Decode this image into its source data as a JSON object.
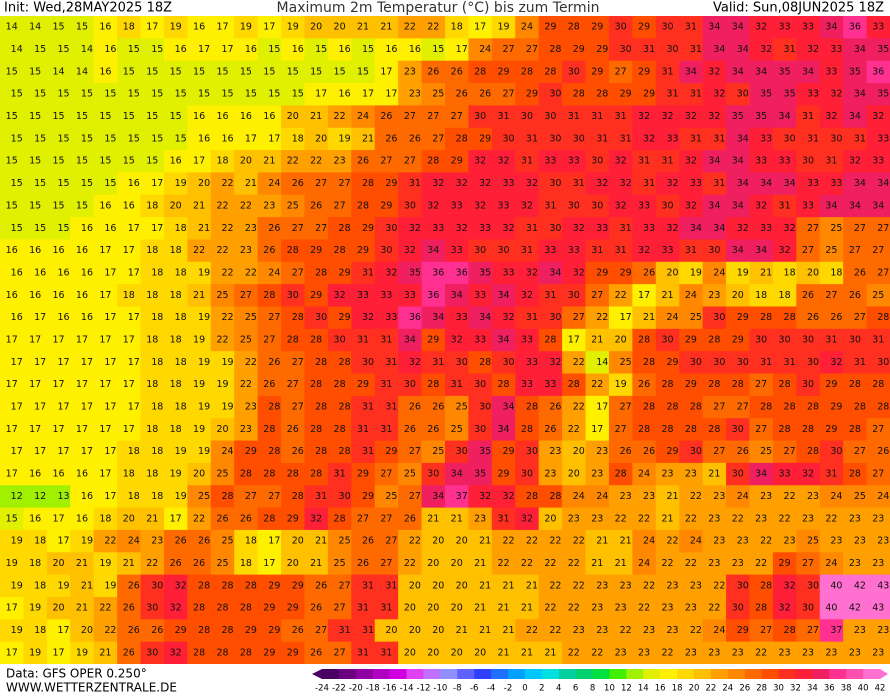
{
  "header": {
    "init": "Init: Wed,28MAY2025 18Z",
    "title": "Maximum 2m Temperatur (°C) bis zum Termin",
    "valid": "Valid: Sun,08JUN2025 18Z"
  },
  "footer": {
    "source": "Data: GFS OPER 0.250°",
    "website": "WWW.WETTERZENTRALE.DE"
  },
  "colorbar": {
    "labels": [
      -24,
      -22,
      -20,
      -18,
      -16,
      -14,
      -12,
      -10,
      -8,
      -6,
      -4,
      -2,
      0,
      2,
      4,
      6,
      8,
      10,
      12,
      14,
      16,
      18,
      20,
      22,
      24,
      26,
      28,
      30,
      32,
      34,
      36,
      38,
      40,
      42
    ],
    "colors": [
      "#4b0063",
      "#6a0080",
      "#8e00a0",
      "#b000c0",
      "#d000e0",
      "#e040f0",
      "#c070ff",
      "#9090ff",
      "#6060ff",
      "#3040ff",
      "#2070ff",
      "#00a0ff",
      "#00c8ff",
      "#00e0e0",
      "#00d0a0",
      "#00d070",
      "#00e040",
      "#40f000",
      "#a0f000",
      "#e0f000",
      "#fff000",
      "#ffd800",
      "#ffc000",
      "#ffa000",
      "#ff8800",
      "#ff6a00",
      "#ff4e00",
      "#ff3020",
      "#ff2038",
      "#f02060",
      "#ff3090",
      "#ff50b0",
      "#ff70d0"
    ]
  },
  "map": {
    "rows": [
      [
        14,
        14,
        15,
        15,
        16,
        18,
        17,
        19,
        16,
        17,
        19,
        17,
        19,
        20,
        20,
        21,
        21,
        22,
        22,
        18,
        17,
        19,
        24,
        29,
        28,
        29,
        30,
        29,
        30,
        31,
        34,
        34,
        32,
        33,
        33,
        34,
        36,
        33
      ],
      [
        14,
        15,
        15,
        14,
        16,
        15,
        15,
        16,
        17,
        17,
        16,
        15,
        16,
        15,
        16,
        15,
        16,
        16,
        15,
        17,
        24,
        27,
        27,
        28,
        29,
        29,
        30,
        31,
        30,
        31,
        34,
        34,
        32,
        31,
        32,
        33,
        34,
        35
      ],
      [
        15,
        15,
        14,
        14,
        16,
        15,
        15,
        15,
        15,
        15,
        15,
        15,
        15,
        15,
        15,
        15,
        17,
        23,
        26,
        26,
        28,
        29,
        28,
        28,
        30,
        29,
        27,
        29,
        31,
        34,
        32,
        34,
        34,
        35,
        34,
        33,
        35,
        36
      ],
      [
        15,
        15,
        15,
        15,
        15,
        15,
        15,
        15,
        15,
        15,
        15,
        15,
        15,
        17,
        16,
        17,
        17,
        23,
        25,
        26,
        26,
        27,
        29,
        30,
        28,
        28,
        29,
        29,
        31,
        31,
        32,
        30,
        35,
        35,
        33,
        32,
        34,
        35
      ],
      [
        15,
        15,
        15,
        15,
        15,
        15,
        15,
        15,
        16,
        16,
        16,
        16,
        20,
        21,
        22,
        24,
        26,
        27,
        27,
        27,
        30,
        31,
        30,
        30,
        31,
        31,
        31,
        32,
        32,
        32,
        32,
        35,
        35,
        34,
        31,
        32,
        34,
        32
      ],
      [
        15,
        15,
        15,
        15,
        15,
        15,
        15,
        15,
        16,
        16,
        17,
        17,
        18,
        20,
        19,
        21,
        26,
        26,
        27,
        28,
        29,
        30,
        31,
        30,
        30,
        31,
        31,
        32,
        33,
        31,
        31,
        34,
        33,
        30,
        31,
        30,
        31,
        33
      ],
      [
        15,
        15,
        15,
        15,
        15,
        15,
        15,
        16,
        17,
        18,
        20,
        21,
        22,
        22,
        23,
        26,
        27,
        27,
        28,
        29,
        32,
        32,
        31,
        33,
        33,
        30,
        32,
        31,
        31,
        32,
        34,
        34,
        33,
        33,
        30,
        31,
        32,
        33
      ],
      [
        15,
        15,
        15,
        15,
        15,
        16,
        17,
        19,
        20,
        22,
        21,
        24,
        26,
        27,
        27,
        28,
        29,
        31,
        32,
        32,
        32,
        33,
        32,
        30,
        31,
        32,
        32,
        31,
        32,
        33,
        31,
        34,
        34,
        34,
        33,
        33,
        34,
        34
      ],
      [
        15,
        15,
        15,
        15,
        16,
        16,
        18,
        20,
        21,
        22,
        22,
        23,
        25,
        26,
        27,
        28,
        29,
        30,
        32,
        33,
        32,
        33,
        32,
        31,
        30,
        30,
        32,
        33,
        30,
        32,
        34,
        34,
        32,
        31,
        33,
        34,
        34,
        34
      ],
      [
        15,
        15,
        15,
        16,
        16,
        17,
        17,
        18,
        21,
        22,
        23,
        26,
        27,
        27,
        28,
        29,
        30,
        32,
        33,
        32,
        33,
        32,
        31,
        30,
        32,
        33,
        31,
        33,
        32,
        34,
        34,
        32,
        33,
        32,
        27,
        25,
        27,
        27
      ],
      [
        16,
        16,
        16,
        16,
        17,
        17,
        18,
        18,
        22,
        22,
        23,
        26,
        28,
        29,
        28,
        29,
        30,
        32,
        34,
        33,
        30,
        30,
        31,
        33,
        33,
        31,
        31,
        32,
        33,
        31,
        30,
        34,
        34,
        32,
        27,
        25,
        27,
        27
      ],
      [
        16,
        16,
        16,
        16,
        17,
        17,
        18,
        18,
        19,
        22,
        22,
        24,
        27,
        28,
        29,
        31,
        32,
        35,
        36,
        36,
        35,
        33,
        32,
        34,
        32,
        29,
        29,
        26,
        20,
        19,
        24,
        19,
        21,
        18,
        20,
        18,
        26,
        27
      ],
      [
        16,
        16,
        16,
        16,
        17,
        18,
        18,
        18,
        21,
        25,
        27,
        28,
        30,
        29,
        32,
        33,
        33,
        33,
        36,
        34,
        33,
        34,
        32,
        31,
        30,
        27,
        22,
        17,
        21,
        24,
        23,
        20,
        18,
        18,
        26,
        27,
        26,
        25
      ],
      [
        16,
        17,
        16,
        16,
        17,
        17,
        18,
        18,
        19,
        22,
        25,
        27,
        28,
        30,
        29,
        32,
        33,
        36,
        34,
        33,
        34,
        32,
        31,
        30,
        27,
        22,
        17,
        21,
        24,
        25,
        30,
        29,
        28,
        28,
        26,
        26,
        27,
        28
      ],
      [
        17,
        17,
        17,
        17,
        17,
        17,
        18,
        18,
        19,
        22,
        25,
        27,
        28,
        28,
        30,
        31,
        31,
        34,
        29,
        32,
        33,
        34,
        33,
        28,
        17,
        21,
        20,
        28,
        30,
        29,
        28,
        29,
        30,
        30,
        30,
        31,
        30,
        31
      ],
      [
        17,
        17,
        17,
        17,
        17,
        17,
        18,
        18,
        19,
        19,
        22,
        26,
        27,
        28,
        28,
        30,
        31,
        32,
        31,
        30,
        28,
        30,
        33,
        32,
        22,
        14,
        25,
        28,
        29,
        30,
        30,
        30,
        31,
        31,
        30,
        32,
        31,
        30
      ],
      [
        17,
        17,
        17,
        17,
        17,
        17,
        18,
        18,
        19,
        19,
        22,
        26,
        27,
        28,
        28,
        29,
        31,
        30,
        28,
        31,
        30,
        28,
        33,
        33,
        28,
        22,
        19,
        26,
        28,
        29,
        28,
        28,
        27,
        28,
        30,
        29,
        28,
        28
      ],
      [
        17,
        17,
        17,
        17,
        17,
        17,
        18,
        18,
        19,
        19,
        23,
        28,
        27,
        28,
        28,
        31,
        31,
        26,
        26,
        25,
        30,
        34,
        28,
        26,
        22,
        17,
        27,
        28,
        28,
        28,
        27,
        27,
        28,
        28,
        28,
        29,
        28,
        28
      ],
      [
        17,
        17,
        17,
        17,
        17,
        17,
        18,
        18,
        19,
        20,
        23,
        28,
        26,
        28,
        28,
        31,
        31,
        26,
        26,
        25,
        30,
        34,
        28,
        26,
        22,
        17,
        27,
        28,
        28,
        28,
        28,
        30,
        27,
        28,
        28,
        29,
        28,
        27
      ],
      [
        17,
        17,
        17,
        17,
        17,
        18,
        18,
        19,
        19,
        24,
        29,
        28,
        26,
        28,
        28,
        31,
        29,
        27,
        25,
        30,
        35,
        29,
        30,
        23,
        20,
        23,
        26,
        26,
        29,
        30,
        27,
        26,
        25,
        27,
        28,
        30,
        27,
        26
      ],
      [
        17,
        16,
        16,
        16,
        17,
        18,
        18,
        19,
        20,
        25,
        28,
        28,
        28,
        28,
        31,
        29,
        27,
        25,
        30,
        34,
        35,
        29,
        30,
        23,
        20,
        23,
        28,
        24,
        23,
        23,
        21,
        30,
        34,
        33,
        32,
        31,
        28,
        27
      ],
      [
        12,
        12,
        13,
        16,
        17,
        18,
        18,
        19,
        25,
        28,
        27,
        27,
        28,
        31,
        30,
        29,
        25,
        27,
        34,
        37,
        32,
        32,
        28,
        28,
        24,
        24,
        23,
        23,
        21,
        22,
        23,
        24,
        23,
        22,
        23,
        24,
        25,
        24
      ],
      [
        15,
        16,
        17,
        16,
        18,
        20,
        21,
        17,
        22,
        26,
        26,
        28,
        29,
        32,
        28,
        27,
        27,
        26,
        21,
        21,
        23,
        31,
        32,
        20,
        23,
        23,
        22,
        22,
        21,
        22,
        23,
        22,
        23,
        22,
        23,
        22,
        23,
        23
      ],
      [
        19,
        18,
        17,
        19,
        22,
        24,
        23,
        26,
        26,
        25,
        18,
        17,
        20,
        21,
        25,
        26,
        27,
        22,
        20,
        20,
        21,
        22,
        22,
        22,
        22,
        21,
        21,
        24,
        22,
        24,
        23,
        23,
        22,
        23,
        25,
        23,
        23,
        23
      ],
      [
        19,
        18,
        20,
        21,
        19,
        21,
        22,
        26,
        26,
        25,
        18,
        17,
        20,
        21,
        25,
        26,
        27,
        22,
        20,
        20,
        21,
        22,
        22,
        22,
        22,
        21,
        21,
        24,
        22,
        22,
        23,
        23,
        22,
        29,
        27,
        24,
        23,
        23
      ],
      [
        19,
        18,
        19,
        21,
        19,
        26,
        30,
        32,
        28,
        28,
        28,
        29,
        29,
        26,
        27,
        31,
        31,
        20,
        20,
        20,
        21,
        21,
        21,
        22,
        22,
        23,
        23,
        22,
        23,
        23,
        22,
        30,
        28,
        32,
        30,
        40,
        42,
        43
      ],
      [
        17,
        19,
        20,
        21,
        22,
        26,
        30,
        32,
        28,
        28,
        28,
        29,
        29,
        26,
        27,
        31,
        31,
        20,
        20,
        20,
        21,
        21,
        21,
        22,
        22,
        23,
        23,
        22,
        23,
        23,
        22,
        30,
        28,
        32,
        30,
        40,
        42,
        43
      ],
      [
        19,
        18,
        17,
        20,
        22,
        26,
        26,
        29,
        28,
        28,
        29,
        29,
        26,
        27,
        31,
        31,
        20,
        20,
        20,
        21,
        21,
        21,
        22,
        22,
        23,
        23,
        22,
        23,
        23,
        22,
        24,
        29,
        27,
        28,
        27,
        37,
        23,
        23
      ],
      [
        17,
        19,
        17,
        19,
        21,
        26,
        30,
        32,
        28,
        28,
        28,
        29,
        29,
        26,
        27,
        31,
        31,
        20,
        20,
        20,
        20,
        21,
        21,
        21,
        22,
        22,
        23,
        23,
        22,
        23,
        23,
        23,
        22,
        23,
        23,
        23,
        23,
        23
      ]
    ]
  }
}
